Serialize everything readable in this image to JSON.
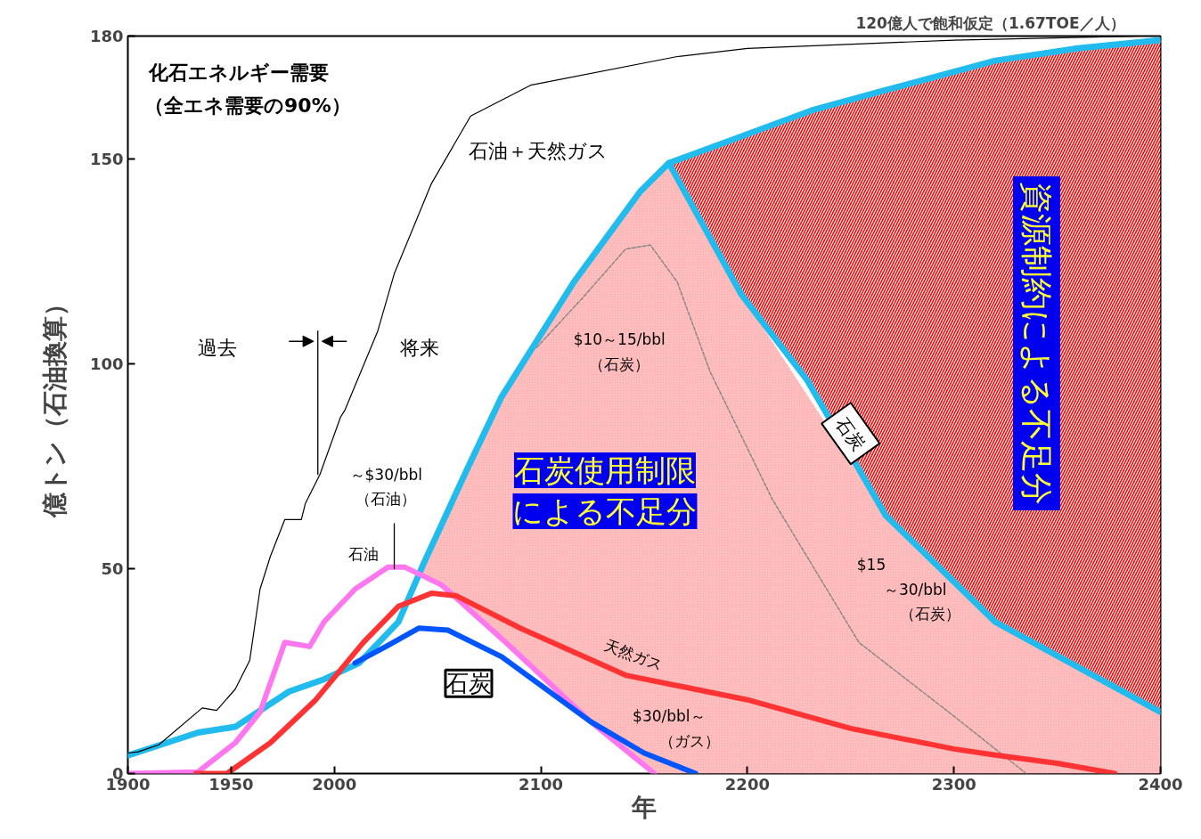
{
  "chart_data": {
    "type": "line",
    "title": "120億人で飽和仮定（1.67TOE／人）",
    "xlabel": "年",
    "ylabel": "億トン（石油換算）",
    "xlim": [
      1900,
      2400
    ],
    "ylim": [
      0,
      180
    ],
    "xticks": [
      1900,
      1950,
      2000,
      2100,
      2200,
      2300,
      2400
    ],
    "yticks": [
      0,
      50,
      100,
      150,
      180
    ],
    "grid": false,
    "series": [
      {
        "type": "area",
        "color": "#ffb0b0",
        "x": [
          2040,
          2052,
          2064,
          2083,
          2100,
          2124,
          2148,
          2155,
          2162,
          2197,
          2267,
          2320,
          2400
        ],
        "values": [
          48,
          61,
          74,
          94,
          106,
          125.5,
          142,
          146,
          149,
          117,
          63,
          37,
          15
        ]
      },
      {
        "type": "area",
        "color": "#ff0000",
        "x": [
          2162,
          2197,
          2232,
          2267,
          2320,
          2360,
          2400
        ],
        "values": [
          149,
          155.5,
          162,
          166.8,
          174,
          177,
          179
        ]
      },
      {
        "color": "#22bbee",
        "x": [
          1900,
          1934,
          1952,
          1978,
          1995,
          2012,
          2031,
          2043,
          2064,
          2081,
          2116,
          2148,
          2162,
          2197,
          2232,
          2267,
          2320,
          2360,
          2400
        ],
        "values": [
          4.4,
          10,
          11.4,
          20,
          23,
          27,
          37,
          51,
          74,
          92,
          120,
          142,
          149,
          155.5,
          162,
          166.8,
          174,
          177,
          179
        ]
      },
      {
        "color": "#22bbee",
        "x": [
          2162,
          2197,
          2229,
          2267,
          2320,
          2400
        ],
        "values": [
          149,
          117,
          96,
          63,
          37,
          15
        ]
      },
      {
        "color": "#000000",
        "x": [
          1900,
          1905,
          1915,
          1936,
          1943,
          1952,
          1959,
          1964,
          1969,
          1976,
          1984,
          1986,
          1993,
          2003,
          2005,
          2021,
          2029,
          2047,
          2066,
          2095,
          2166,
          2200,
          2300,
          2390,
          2400
        ],
        "values": [
          5,
          5.3,
          7,
          16,
          15.4,
          20.6,
          27.6,
          45,
          53,
          62,
          62,
          66,
          73,
          87,
          88.6,
          108,
          122,
          144,
          160.5,
          168,
          175,
          177,
          179,
          180,
          180
        ]
      },
      {
        "color": "#888888",
        "line_style": "dashed",
        "x": [
          2098,
          2120,
          2141,
          2153,
          2166,
          2182,
          2212,
          2254,
          2300,
          2335
        ],
        "values": [
          104,
          116,
          128,
          129,
          120,
          98,
          67,
          32,
          14,
          0
        ]
      },
      {
        "color": "#ff77ee",
        "x": [
          1900,
          1934,
          1952,
          1964,
          1976,
          1988,
          1995,
          2010,
          2026,
          2034,
          2052,
          2083,
          2124,
          2155
        ],
        "values": [
          0,
          0.4,
          7.5,
          15,
          32,
          31,
          37,
          45,
          50.4,
          50.4,
          46,
          32,
          12.7,
          0
        ]
      },
      {
        "color": "#ff3333",
        "x": [
          1933,
          1948,
          1969,
          1991,
          2014,
          2031,
          2047,
          2059,
          2090,
          2141,
          2200,
          2250,
          2300,
          2320,
          2350,
          2378
        ],
        "values": [
          0,
          0,
          7.5,
          18,
          32,
          40.8,
          44,
          43.4,
          35.5,
          24,
          18,
          11,
          6,
          4.5,
          2.5,
          0
        ]
      },
      {
        "color": "#0055ff",
        "x": [
          2010,
          2025,
          2041,
          2055,
          2081,
          2124,
          2150,
          2175
        ],
        "values": [
          27,
          31,
          35.5,
          35,
          28.5,
          12.7,
          5,
          0
        ]
      },
      {
        "color": "#000000",
        "x": [
          1992,
          1992
        ],
        "values": [
          108,
          73
        ]
      },
      {
        "color": "#000000",
        "x": [
          2029,
          2029
        ],
        "values": [
          61,
          50
        ]
      }
    ],
    "annotations": [
      "化石エネルギー需要",
      "（全エネ需要の90%）",
      "石油＋天然ガス",
      "過去",
      "将来",
      "$10～15/bbl",
      "（石炭）",
      "～$30/bbl",
      "（石油）",
      "石油",
      "石炭使用制限",
      "による不足分",
      "石炭",
      "天然ガス",
      "$30/bbl～",
      "（ガス）",
      "$15",
      "～30/bbl",
      "（石炭）",
      "資源制約による不足分",
      "石炭"
    ]
  }
}
